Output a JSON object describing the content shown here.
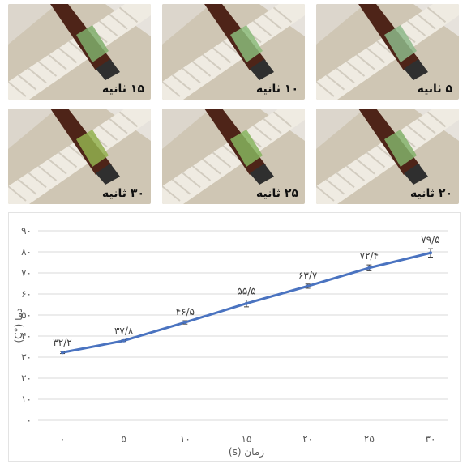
{
  "photos": [
    {
      "caption": "۱۵ ثانیه",
      "tint": "#7fae6b"
    },
    {
      "caption": "۱۰ ثانیه",
      "tint": "#8bbb7a"
    },
    {
      "caption": "۵ ثانیه",
      "tint": "#8db88a"
    },
    {
      "caption": "۳۰ ثانیه",
      "tint": "#93b24f"
    },
    {
      "caption": "۲۵ ثانیه",
      "tint": "#86b45e"
    },
    {
      "caption": "۲۰ ثانیه",
      "tint": "#82b26a"
    }
  ],
  "chart_data": {
    "type": "line",
    "xlabel": "زمان (s)",
    "ylabel": "دما (°C)",
    "x_ticks": [
      "۰",
      "۵",
      "۱۰",
      "۱۵",
      "۲۰",
      "۲۵",
      "۳۰"
    ],
    "x": [
      0,
      5,
      10,
      15,
      20,
      25,
      30
    ],
    "y_ticks": [
      "۰",
      "۱۰",
      "۲۰",
      "۳۰",
      "۴۰",
      "۵۰",
      "۶۰",
      "۷۰",
      "۸۰",
      "۹۰"
    ],
    "ylim": [
      0,
      90
    ],
    "series": [
      {
        "values": [
          32.2,
          37.8,
          46.5,
          55.5,
          63.7,
          72.4,
          79.5
        ],
        "errors": [
          0.5,
          0.4,
          0.8,
          1.6,
          1.0,
          1.4,
          2.0
        ],
        "labels": [
          "۳۲/۲",
          "۳۷/۸",
          "۴۶/۵",
          "۵۵/۵",
          "۶۳/۷",
          "۷۲/۴",
          "۷۹/۵"
        ],
        "color": "#4a73c0"
      }
    ],
    "grid": true,
    "grid_color": "#d9d9d9"
  }
}
